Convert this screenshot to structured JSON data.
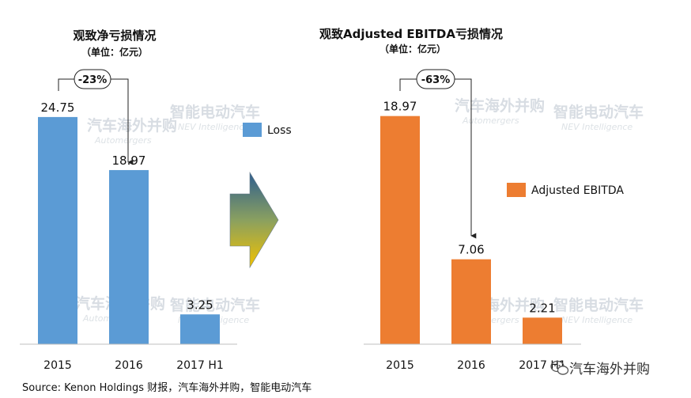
{
  "chart_data": [
    {
      "type": "bar",
      "title": "观致净亏损情况",
      "subtitle": "（单位：亿元）",
      "categories": [
        "2015",
        "2016",
        "2017 H1"
      ],
      "series": [
        {
          "name": "Loss",
          "values": [
            24.75,
            18.97,
            3.25
          ],
          "color": "#5b9bd5"
        }
      ],
      "value_labels": [
        "24.75",
        "18.97",
        "3.25"
      ],
      "ylim": [
        0,
        27
      ],
      "grid": false,
      "legend": "right",
      "change_label": "-23%"
    },
    {
      "type": "bar",
      "title": "观致Adjusted EBITDA亏损情况",
      "subtitle": "（单位：亿元）",
      "categories": [
        "2015",
        "2016",
        "2017 H1"
      ],
      "series": [
        {
          "name": "Adjusted EBITDA",
          "values": [
            18.97,
            7.06,
            2.21
          ],
          "color": "#ed7d31"
        }
      ],
      "value_labels": [
        "18.97",
        "7.06",
        "2.21"
      ],
      "ylim": [
        0,
        27
      ],
      "grid": false,
      "legend": "right",
      "change_label": "-63%"
    }
  ],
  "source": "Source: Kenon Holdings 财报，汽车海外并购，智能电动汽车",
  "watermarks": [
    "汽车海外并购",
    "Automergers",
    "智能电动汽车",
    "NEV Intelligence"
  ],
  "wechat_brand": "汽车海外并购",
  "colors": {
    "blue": "#5b9bd5",
    "orange": "#ed7d31",
    "arrow_top": "#2e5e8e",
    "arrow_bottom": "#f2c200"
  },
  "icons": {
    "transition_arrow": "arrow-right-icon",
    "wechat": "wechat-icon"
  }
}
